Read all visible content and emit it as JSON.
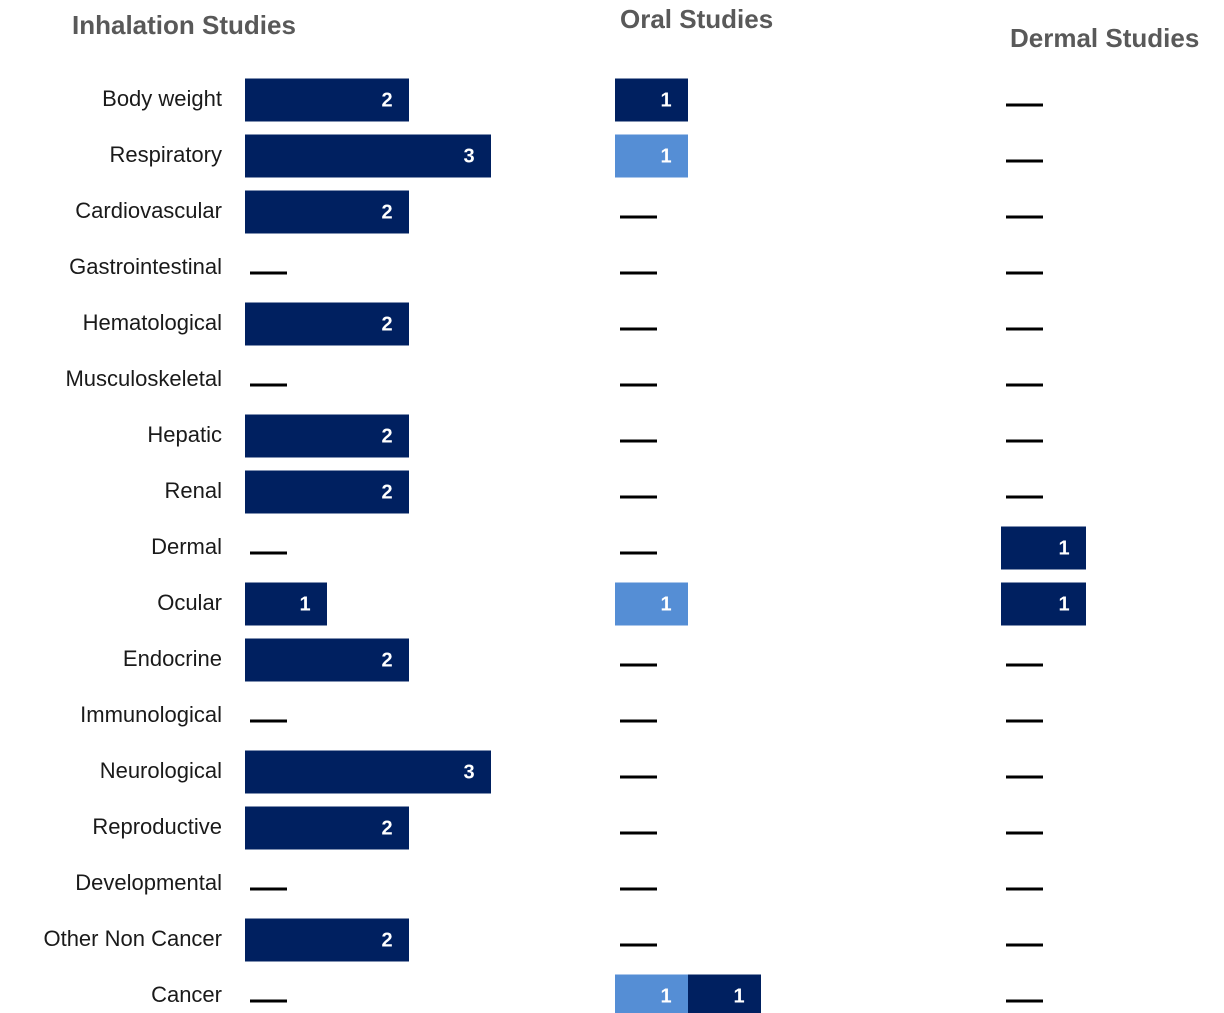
{
  "chart_data": [
    {
      "type": "bar",
      "orientation": "horizontal",
      "title": "Inhalation Studies",
      "categories": [
        "Body weight",
        "Respiratory",
        "Cardiovascular",
        "Gastrointestinal",
        "Hematological",
        "Musculoskeletal",
        "Hepatic",
        "Renal",
        "Dermal",
        "Ocular",
        "Endocrine",
        "Immunological",
        "Neurological",
        "Reproductive",
        "Developmental",
        "Other Non Cancer",
        "Cancer"
      ],
      "series": [
        {
          "color": "#002060",
          "values": [
            2,
            3,
            2,
            0,
            2,
            0,
            2,
            2,
            0,
            1,
            2,
            0,
            3,
            2,
            0,
            2,
            0
          ]
        }
      ]
    },
    {
      "type": "bar",
      "orientation": "horizontal",
      "stacked": true,
      "title": "Oral Studies",
      "series": [
        {
          "color": "#558ed5",
          "values": [
            0,
            1,
            0,
            0,
            0,
            0,
            0,
            0,
            0,
            1,
            0,
            0,
            0,
            0,
            0,
            0,
            1
          ]
        },
        {
          "color": "#002060",
          "values": [
            1,
            0,
            0,
            0,
            0,
            0,
            0,
            0,
            0,
            0,
            0,
            0,
            0,
            0,
            0,
            0,
            1
          ]
        }
      ]
    },
    {
      "type": "bar",
      "orientation": "horizontal",
      "title": "Dermal Studies",
      "series": [
        {
          "color": "#002060",
          "values": [
            0,
            0,
            0,
            0,
            0,
            0,
            0,
            0,
            1,
            1,
            0,
            0,
            0,
            0,
            0,
            0,
            0
          ]
        }
      ]
    }
  ]
}
